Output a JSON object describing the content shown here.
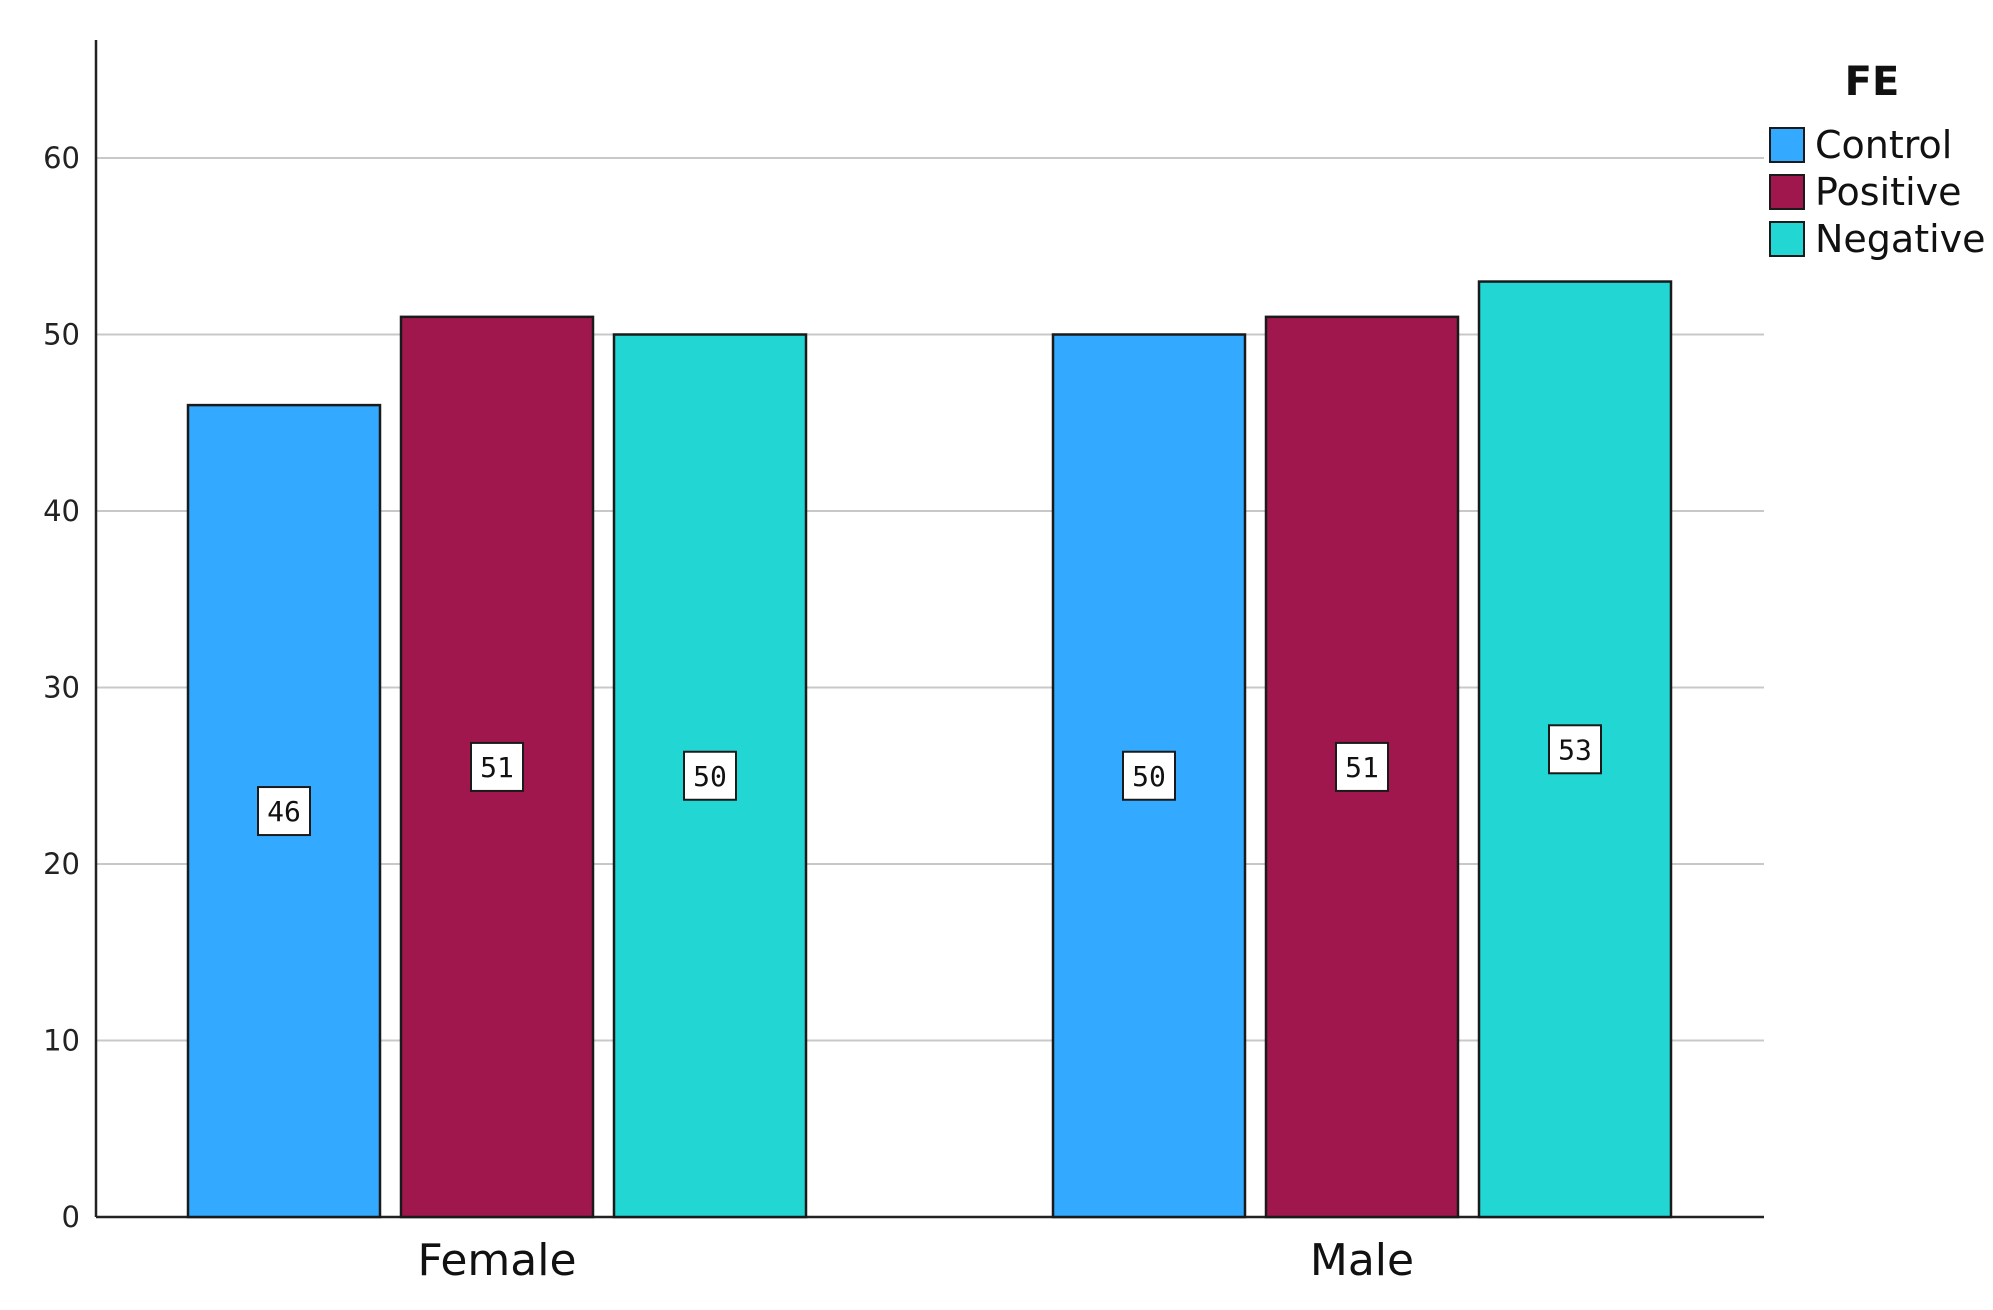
{
  "chart_data": {
    "type": "bar",
    "categories": [
      "Female",
      "Male"
    ],
    "series": [
      {
        "name": "Control",
        "values": [
          46,
          50
        ],
        "color": "#33AAFF"
      },
      {
        "name": "Positive",
        "values": [
          51,
          51
        ],
        "color": "#A0174D"
      },
      {
        "name": "Negative",
        "values": [
          50,
          53
        ],
        "color": "#22D6D4"
      }
    ],
    "title": "",
    "xlabel": "",
    "ylabel": "",
    "ylim": [
      0,
      66
    ],
    "yticks": [
      0,
      10,
      20,
      30,
      40,
      50,
      60
    ],
    "grid": true,
    "data_labels": true,
    "legend": {
      "title": "FE",
      "position": "top-right"
    }
  }
}
